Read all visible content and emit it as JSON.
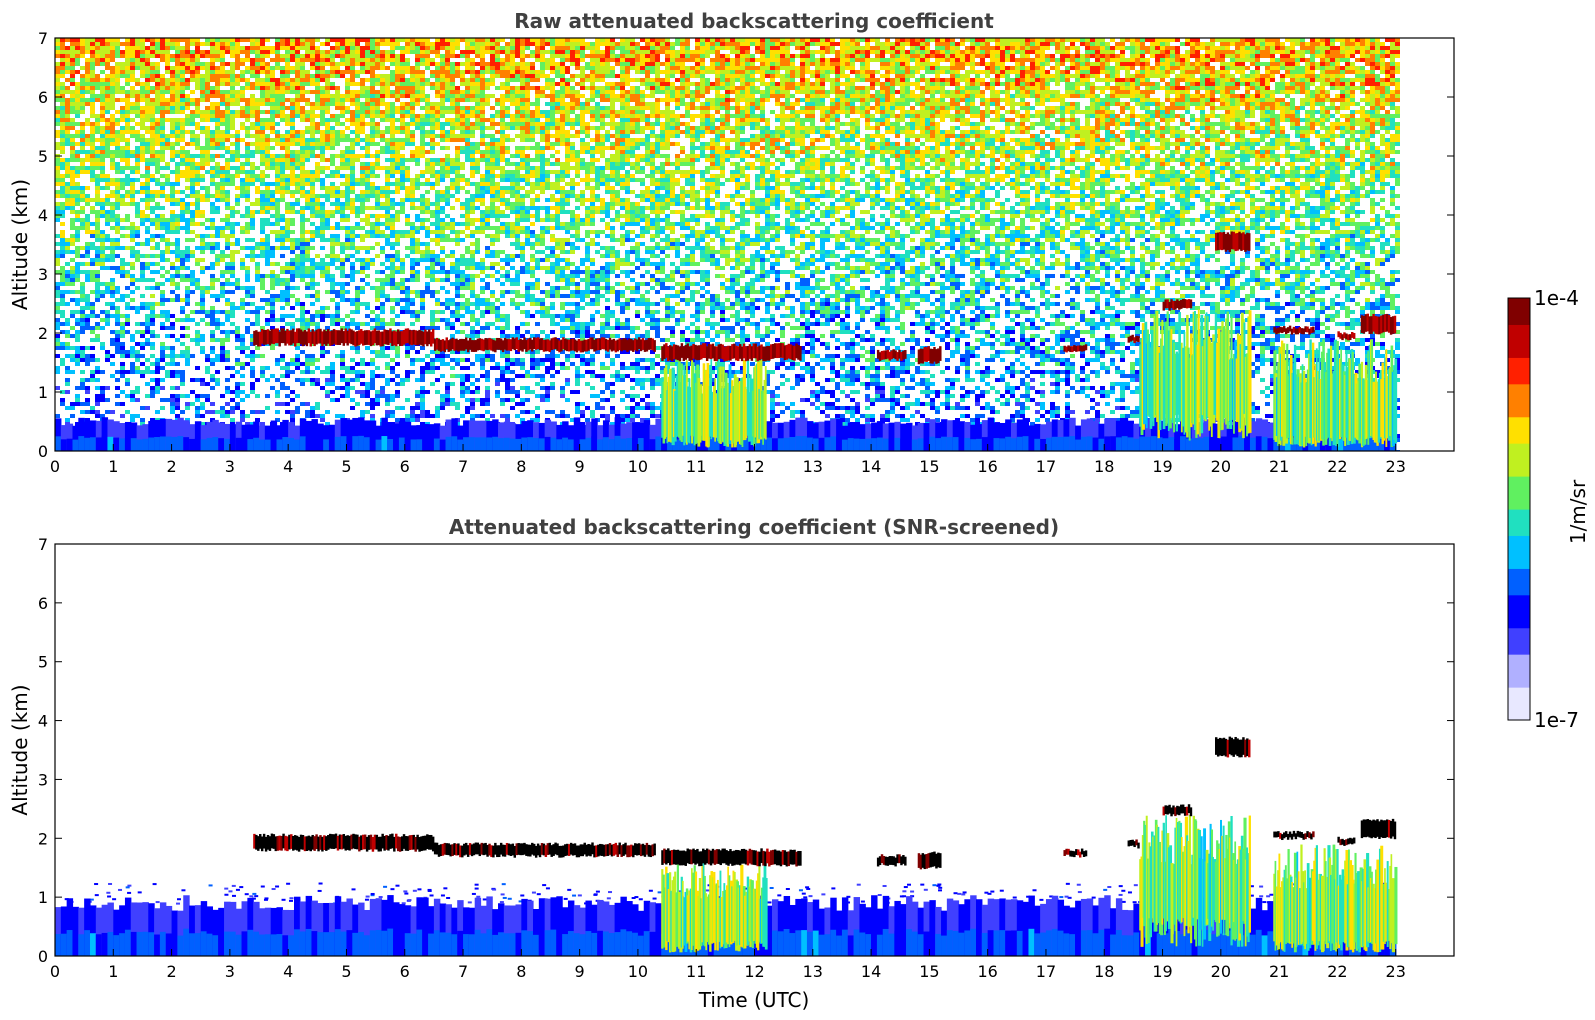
{
  "chart_data": [
    {
      "type": "heatmap",
      "title": "Raw attenuated backscattering coefficient",
      "xlabel": "",
      "ylabel": "Altitude (km)",
      "xlim": [
        0,
        24
      ],
      "ylim": [
        0,
        7
      ],
      "x_ticks": [
        "0",
        "1",
        "2",
        "3",
        "4",
        "5",
        "6",
        "7",
        "8",
        "9",
        "10",
        "11",
        "12",
        "13",
        "14",
        "15",
        "16",
        "17",
        "18",
        "19",
        "20",
        "21",
        "22",
        "23"
      ],
      "y_ticks": [
        "0",
        "1",
        "2",
        "3",
        "4",
        "5",
        "6",
        "7"
      ],
      "data_end_time": 23,
      "features": {
        "boundary_layer": {
          "top_km": 0.5
        },
        "noise_background": true,
        "cloud_layers": [
          {
            "x": [
              3.4,
              6.5
            ],
            "alt_km": [
              1.8,
              2.05
            ]
          },
          {
            "x": [
              6.5,
              10.3
            ],
            "alt_km": [
              1.7,
              1.9
            ]
          },
          {
            "x": [
              10.4,
              12.8
            ],
            "alt_km": [
              1.55,
              1.8
            ]
          },
          {
            "x": [
              14.1,
              14.6
            ],
            "alt_km": [
              1.55,
              1.7
            ]
          },
          {
            "x": [
              14.8,
              15.2
            ],
            "alt_km": [
              1.5,
              1.75
            ]
          },
          {
            "x": [
              17.3,
              17.7
            ],
            "alt_km": [
              1.7,
              1.8
            ]
          },
          {
            "x": [
              18.4,
              18.6
            ],
            "alt_km": [
              1.85,
              1.95
            ]
          },
          {
            "x": [
              19.0,
              19.5
            ],
            "alt_km": [
              2.4,
              2.55
            ]
          },
          {
            "x": [
              19.9,
              20.5
            ],
            "alt_km": [
              3.4,
              3.7
            ]
          },
          {
            "x": [
              20.9,
              21.6
            ],
            "alt_km": [
              2.0,
              2.1
            ]
          },
          {
            "x": [
              22.0,
              22.3
            ],
            "alt_km": [
              1.9,
              2.0
            ]
          },
          {
            "x": [
              22.4,
              23.0
            ],
            "alt_km": [
              2.0,
              2.3
            ]
          }
        ],
        "precipitation": [
          {
            "x": [
              10.4,
              12.2
            ],
            "alt_km": [
              0.2,
              1.6
            ]
          },
          {
            "x": [
              18.6,
              20.5
            ],
            "alt_km": [
              0.5,
              2.4
            ]
          },
          {
            "x": [
              20.9,
              23.0
            ],
            "alt_km": [
              0.2,
              1.9
            ]
          }
        ]
      }
    },
    {
      "type": "heatmap",
      "title": "Attenuated backscattering coefficient (SNR-screened)",
      "xlabel": "Time (UTC)",
      "ylabel": "Altitude (km)",
      "xlim": [
        0,
        24
      ],
      "ylim": [
        0,
        7
      ],
      "x_ticks": [
        "0",
        "1",
        "2",
        "3",
        "4",
        "5",
        "6",
        "7",
        "8",
        "9",
        "10",
        "11",
        "12",
        "13",
        "14",
        "15",
        "16",
        "17",
        "18",
        "19",
        "20",
        "21",
        "22",
        "23"
      ],
      "y_ticks": [
        "0",
        "1",
        "2",
        "3",
        "4",
        "5",
        "6",
        "7"
      ],
      "data_end_time": 23,
      "features": {
        "boundary_layer": {
          "top_km": 0.9
        },
        "noise_background": false,
        "cloud_layers": [
          {
            "x": [
              3.4,
              6.5
            ],
            "alt_km": [
              1.8,
              2.05
            ]
          },
          {
            "x": [
              6.5,
              10.3
            ],
            "alt_km": [
              1.7,
              1.9
            ]
          },
          {
            "x": [
              10.4,
              12.8
            ],
            "alt_km": [
              1.55,
              1.8
            ]
          },
          {
            "x": [
              14.1,
              14.6
            ],
            "alt_km": [
              1.55,
              1.7
            ]
          },
          {
            "x": [
              14.8,
              15.2
            ],
            "alt_km": [
              1.5,
              1.75
            ]
          },
          {
            "x": [
              17.3,
              17.7
            ],
            "alt_km": [
              1.7,
              1.8
            ]
          },
          {
            "x": [
              18.4,
              18.6
            ],
            "alt_km": [
              1.85,
              1.95
            ]
          },
          {
            "x": [
              19.0,
              19.5
            ],
            "alt_km": [
              2.4,
              2.55
            ]
          },
          {
            "x": [
              19.9,
              20.5
            ],
            "alt_km": [
              3.4,
              3.7
            ]
          },
          {
            "x": [
              20.9,
              21.6
            ],
            "alt_km": [
              2.0,
              2.1
            ]
          },
          {
            "x": [
              22.0,
              22.3
            ],
            "alt_km": [
              1.9,
              2.0
            ]
          },
          {
            "x": [
              22.4,
              23.0
            ],
            "alt_km": [
              2.0,
              2.3
            ]
          }
        ],
        "precipitation": [
          {
            "x": [
              10.4,
              12.2
            ],
            "alt_km": [
              0.2,
              1.6
            ]
          },
          {
            "x": [
              18.6,
              20.5
            ],
            "alt_km": [
              0.5,
              2.4
            ]
          },
          {
            "x": [
              20.9,
              23.0
            ],
            "alt_km": [
              0.2,
              1.9
            ]
          }
        ]
      }
    }
  ],
  "colorbar": {
    "label": "1/m/sr",
    "max_label": "1e-4",
    "min_label": "1e-7",
    "scale": "log",
    "colormap": [
      "#e8e8ff",
      "#b0b0ff",
      "#4040ff",
      "#0000ff",
      "#0060ff",
      "#00c0ff",
      "#20e0c0",
      "#60f060",
      "#c0f020",
      "#ffe000",
      "#ff8000",
      "#ff2000",
      "#c00000",
      "#800000"
    ]
  }
}
